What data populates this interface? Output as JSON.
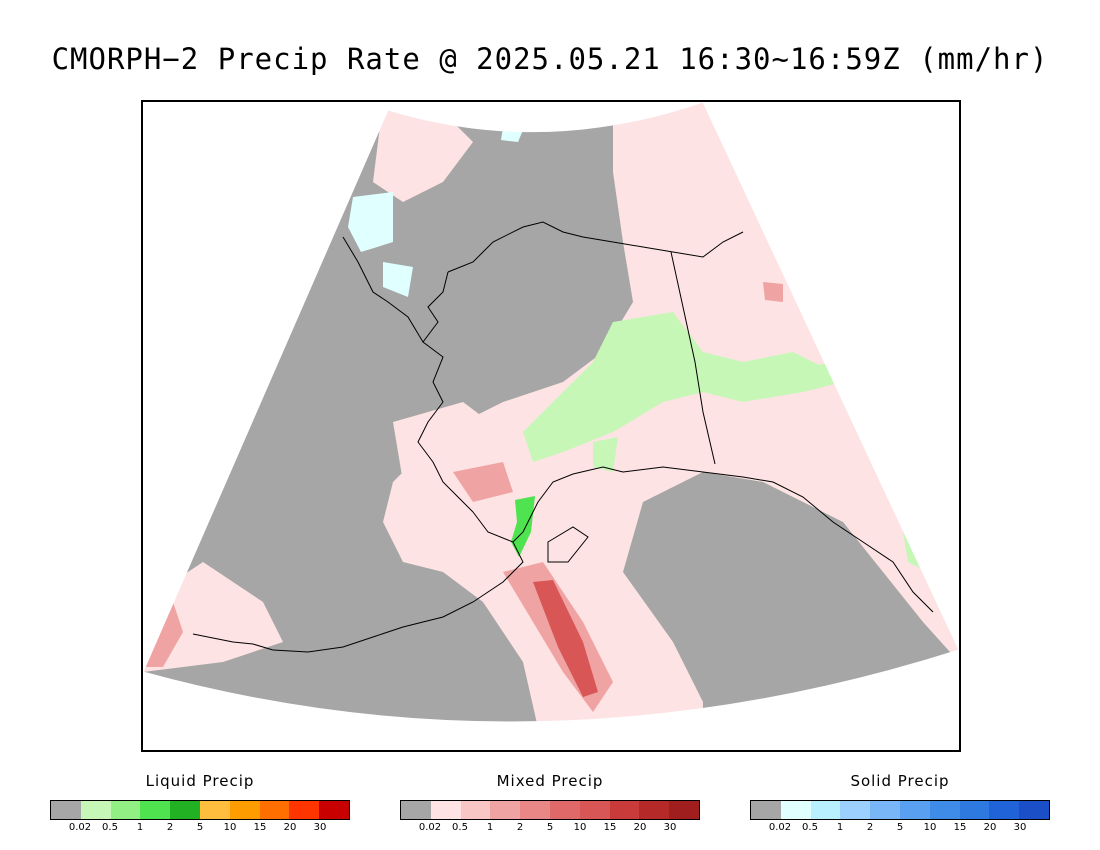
{
  "title": "CMORPH−2 Precip Rate @ 2025.05.21 16:30~16:59Z (mm/hr)",
  "legends": [
    {
      "title": "Liquid Precip",
      "colors": [
        "#a6a6a6",
        "#c6f7b6",
        "#92ef84",
        "#4fe34f",
        "#22b122",
        "#ffbe3d",
        "#ff9c00",
        "#ff6f00",
        "#ff3500",
        "#c80000"
      ],
      "ticks": [
        "0.02",
        "0.5",
        "1",
        "2",
        "5",
        "10",
        "15",
        "20",
        "30"
      ]
    },
    {
      "title": "Mixed Precip",
      "colors": [
        "#a6a6a6",
        "#fde3e3",
        "#f9c6c6",
        "#f0a3a3",
        "#e98686",
        "#df6868",
        "#d85656",
        "#c93b3b",
        "#b52929",
        "#a11e1e"
      ],
      "ticks": [
        "0.02",
        "0.5",
        "1",
        "2",
        "5",
        "10",
        "15",
        "20",
        "30"
      ]
    },
    {
      "title": "Solid Precip",
      "colors": [
        "#a6a6a6",
        "#e0ffff",
        "#b8f0ff",
        "#9bd0ff",
        "#79b6f7",
        "#5aa0f0",
        "#3f8ce8",
        "#2e79e0",
        "#2063d8",
        "#1a4fc8"
      ],
      "ticks": [
        "0.02",
        "0.5",
        "1",
        "2",
        "5",
        "10",
        "15",
        "20",
        "30"
      ]
    }
  ],
  "map": {
    "no_data_color": "#a6a6a6",
    "light_mixed_color": "#fde3e3",
    "medium_mixed_color": "#f0a3a3",
    "heavy_mixed_color": "#d85656",
    "light_liquid_color": "#c6f7b6",
    "medium_liquid_color": "#4fe34f",
    "light_solid_color": "#e0ffff",
    "coastline_color": "#000000"
  }
}
